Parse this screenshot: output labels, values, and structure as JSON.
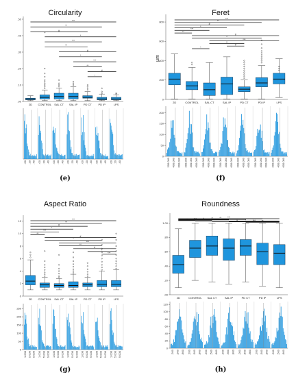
{
  "panel_labels": [
    "(e)",
    "(f)",
    "(g)",
    "(h)"
  ],
  "chart_data": [
    {
      "type": "box",
      "title": "Circularity",
      "ylabel": "",
      "categories": [
        "2D",
        "CONTROL",
        "SAL CT",
        "SAL IP",
        "PD CT",
        "PD IP",
        "LPS"
      ],
      "yticks": [
        ".00",
        ".10",
        ".20",
        ".30",
        ".40",
        ".50"
      ],
      "ylim": [
        0,
        0.5
      ],
      "boxes": [
        {
          "min": 0.005,
          "q1": 0.01,
          "median": 0.015,
          "q3": 0.02,
          "max": 0.035
        },
        {
          "min": 0.005,
          "q1": 0.015,
          "median": 0.025,
          "q3": 0.04,
          "max": 0.07
        },
        {
          "min": 0.005,
          "q1": 0.015,
          "median": 0.03,
          "q3": 0.05,
          "max": 0.08
        },
        {
          "min": 0.005,
          "q1": 0.015,
          "median": 0.03,
          "q3": 0.05,
          "max": 0.09
        },
        {
          "min": 0.005,
          "q1": 0.02,
          "median": 0.025,
          "q3": 0.035,
          "max": 0.06
        },
        {
          "min": 0.005,
          "q1": 0.01,
          "median": 0.015,
          "q3": 0.025,
          "max": 0.045
        },
        {
          "min": 0.005,
          "q1": 0.01,
          "median": 0.015,
          "q3": 0.025,
          "max": 0.04
        }
      ],
      "outliers": [
        {
          "x": 1,
          "y": [
            0.08,
            0.09,
            0.1,
            0.11,
            0.12,
            0.13,
            0.15,
            0.17,
            0.2,
            0.42
          ]
        },
        {
          "x": 2,
          "y": [
            0.09,
            0.1,
            0.11,
            0.13
          ]
        },
        {
          "x": 3,
          "y": [
            0.1,
            0.11,
            0.12
          ]
        },
        {
          "x": 4,
          "y": [
            0.07,
            0.08,
            0.09,
            0.1
          ]
        },
        {
          "x": 5,
          "y": [
            0.05,
            0.06,
            0.08
          ]
        },
        {
          "x": 6,
          "y": [
            0.045,
            0.05
          ]
        }
      ],
      "hist_tick_labels": [
        ".00",
        ".20",
        ".40"
      ]
    },
    {
      "type": "box",
      "title": "Feret",
      "ylabel": "μm",
      "categories": [
        "2D",
        "CONTROL",
        "SAL CT",
        "SAL IP",
        "PD CT",
        "PD IP",
        "LPS"
      ],
      "yticks": [
        "0",
        "200",
        "400",
        "600",
        "800"
      ],
      "ylim": [
        0,
        850
      ],
      "boxes": [
        {
          "min": 5,
          "q1": 150,
          "median": 210,
          "q3": 270,
          "max": 470
        },
        {
          "min": 5,
          "q1": 100,
          "median": 140,
          "q3": 185,
          "max": 330
        },
        {
          "min": 5,
          "q1": 40,
          "median": 100,
          "q3": 170,
          "max": 380
        },
        {
          "min": 5,
          "q1": 50,
          "median": 160,
          "q3": 230,
          "max": 440
        },
        {
          "min": 5,
          "q1": 80,
          "median": 105,
          "q3": 130,
          "max": 200
        },
        {
          "min": 5,
          "q1": 130,
          "median": 170,
          "q3": 225,
          "max": 350
        },
        {
          "min": 20,
          "q1": 160,
          "median": 210,
          "q3": 270,
          "max": 420
        }
      ],
      "outliers": [
        {
          "x": 1,
          "y": [
            360,
            380
          ]
        },
        {
          "x": 4,
          "y": [
            220,
            240,
            260,
            280,
            300,
            320,
            340,
            360,
            380,
            400
          ]
        },
        {
          "x": 5,
          "y": [
            380,
            400,
            420,
            440,
            460,
            480,
            500,
            530,
            570,
            610
          ]
        },
        {
          "x": 6,
          "y": [
            300,
            320,
            340
          ]
        }
      ],
      "hist_tick_labels": [
        "200.000",
        "400.000",
        "600.000"
      ]
    },
    {
      "type": "box",
      "title": "Aspect Ratio",
      "ylabel": "",
      "categories": [
        "2D",
        "CONTROL",
        "SAL CT",
        "SAL IP",
        "PD CT",
        "PD IP",
        "LPS"
      ],
      "yticks": [
        "0",
        "2",
        "4",
        "6",
        "8",
        "10",
        "12"
      ],
      "ylim": [
        0,
        12.5
      ],
      "boxes": [
        {
          "min": 1.0,
          "q1": 1.8,
          "median": 2.4,
          "q3": 3.3,
          "max": 5.8
        },
        {
          "min": 1.0,
          "q1": 1.4,
          "median": 1.8,
          "q3": 2.1,
          "max": 3.0
        },
        {
          "min": 1.0,
          "q1": 1.4,
          "median": 1.7,
          "q3": 2.0,
          "max": 2.8
        },
        {
          "min": 1.0,
          "q1": 1.4,
          "median": 1.7,
          "q3": 2.3,
          "max": 3.5
        },
        {
          "min": 1.0,
          "q1": 1.5,
          "median": 1.8,
          "q3": 2.1,
          "max": 3.0
        },
        {
          "min": 1.0,
          "q1": 1.5,
          "median": 1.9,
          "q3": 2.5,
          "max": 4.0
        },
        {
          "min": 1.0,
          "q1": 1.5,
          "median": 1.9,
          "q3": 2.5,
          "max": 4.2
        }
      ],
      "outliers": [
        {
          "x": 0,
          "y": [
            6.2,
            6.6,
            7.0
          ]
        },
        {
          "x": 1,
          "y": [
            3.2,
            3.5,
            3.8,
            4.2,
            4.6,
            5.0,
            5.6,
            7.2
          ]
        },
        {
          "x": 2,
          "y": [
            3.0,
            3.2,
            3.6,
            4.0,
            4.4,
            5.0,
            6.6
          ]
        },
        {
          "x": 3,
          "y": [
            3.7,
            4.0,
            4.3,
            4.7,
            5.1,
            5.6,
            6.2,
            7.0
          ]
        },
        {
          "x": 4,
          "y": [
            3.2,
            3.5,
            3.9,
            4.3,
            4.8,
            5.3
          ]
        },
        {
          "x": 5,
          "y": [
            4.2,
            4.6,
            5.0,
            5.5,
            6.0,
            6.5,
            7.0,
            7.6,
            8.2,
            9.0
          ]
        },
        {
          "x": 6,
          "y": [
            4.4,
            4.8,
            5.2,
            5.6,
            6.0,
            6.6,
            7.2,
            8.0,
            9.0,
            10.0
          ]
        }
      ],
      "hist_tick_labels": [
        "1.000",
        "5.000",
        "9.000"
      ]
    },
    {
      "type": "box",
      "title": "Roundness",
      "ylabel": "",
      "categories": [
        "2D",
        "CONTROL",
        "SAL CT",
        "SAL IP",
        "PD CT",
        "PD IP",
        "LPS"
      ],
      "yticks": [
        ".00",
        ".20",
        ".40",
        ".60",
        ".80",
        "1.00"
      ],
      "ylim": [
        0,
        1.1
      ],
      "boxes": [
        {
          "min": 0.1,
          "q1": 0.3,
          "median": 0.42,
          "q3": 0.55,
          "max": 0.92
        },
        {
          "min": 0.2,
          "q1": 0.52,
          "median": 0.65,
          "q3": 0.76,
          "max": 1.0
        },
        {
          "min": 0.18,
          "q1": 0.55,
          "median": 0.68,
          "q3": 0.82,
          "max": 1.0
        },
        {
          "min": 0.15,
          "q1": 0.48,
          "median": 0.65,
          "q3": 0.78,
          "max": 1.0
        },
        {
          "min": 0.18,
          "q1": 0.55,
          "median": 0.68,
          "q3": 0.77,
          "max": 1.0
        },
        {
          "min": 0.12,
          "q1": 0.42,
          "median": 0.6,
          "q3": 0.72,
          "max": 1.0
        },
        {
          "min": 0.1,
          "q1": 0.42,
          "median": 0.58,
          "q3": 0.7,
          "max": 1.0
        }
      ],
      "outliers": [],
      "hist_tick_labels": [
        ".200",
        ".500",
        ".800"
      ]
    }
  ],
  "histograms": [
    {
      "yticks": [],
      "ylim": [
        0,
        1
      ]
    },
    {
      "yticks": [
        "0",
        "50",
        "100",
        "150",
        "200"
      ],
      "ylim": [
        0,
        230
      ]
    },
    {
      "yticks": [
        "0",
        "50",
        "100",
        "150",
        "200",
        "250"
      ],
      "ylim": [
        0,
        280
      ]
    },
    {
      "yticks": [
        "0",
        "20",
        "40",
        "60",
        "80",
        "100",
        "120"
      ],
      "ylim": [
        0,
        128
      ]
    }
  ],
  "significance_labels": [
    "***",
    "**",
    "#",
    "*"
  ]
}
